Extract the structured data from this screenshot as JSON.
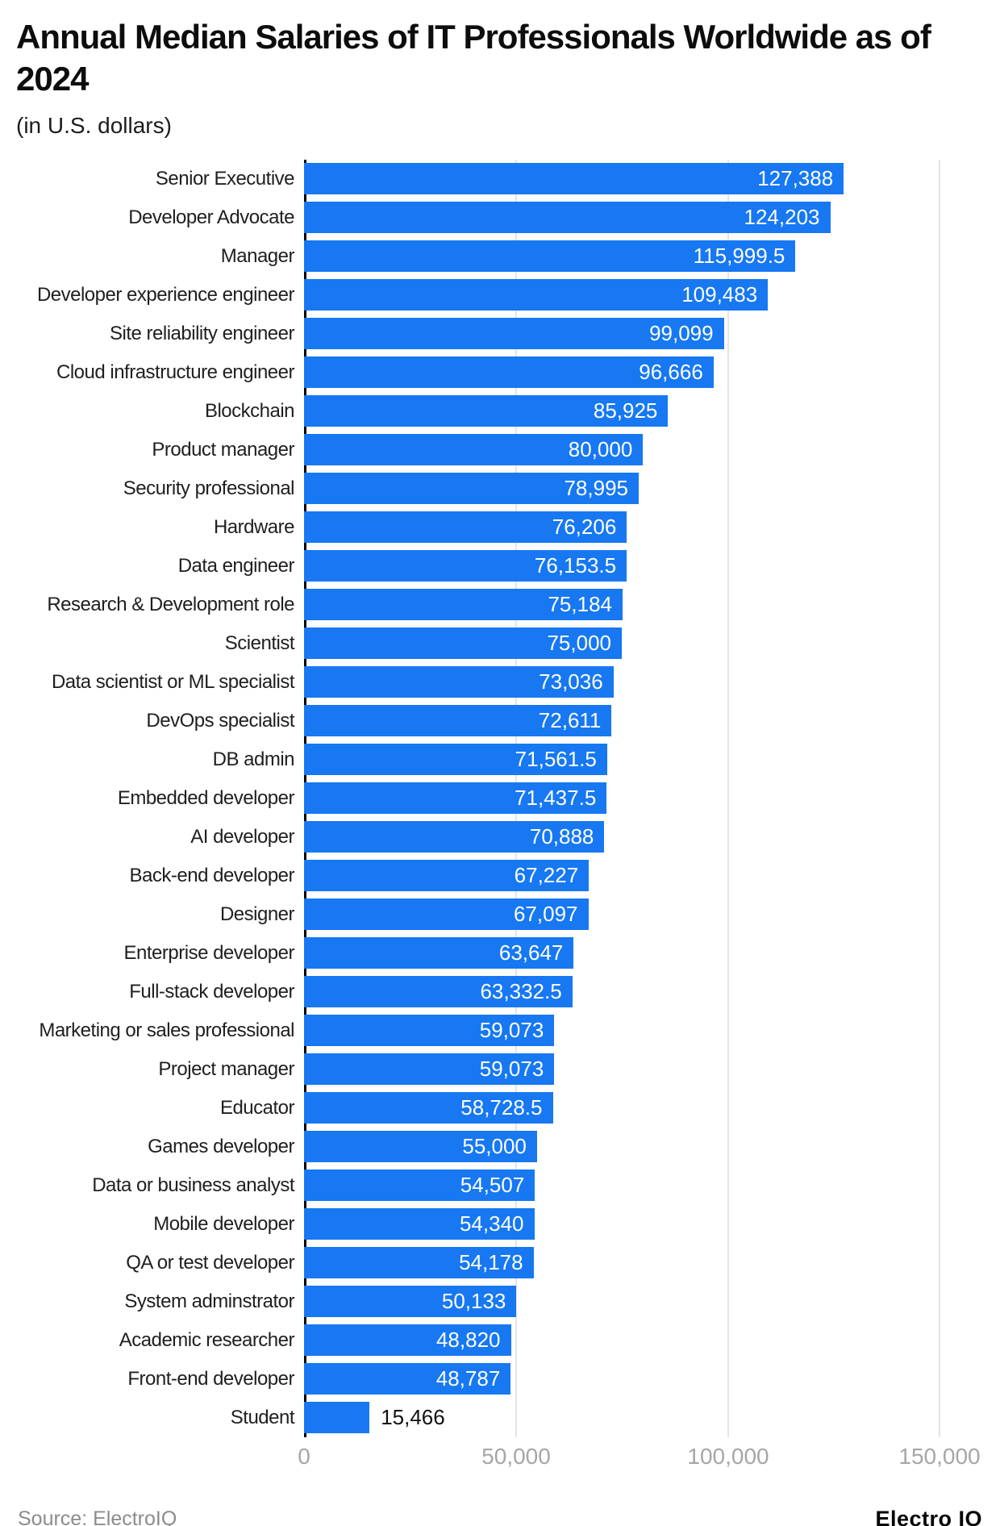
{
  "title": "Annual Median Salaries of IT Professionals Worldwide as of 2024",
  "subtitle": "(in U.S. dollars)",
  "source": "Source: ElectroIQ",
  "brand": "Electro IQ",
  "colors": {
    "bar": "#1778f2",
    "value_label_inside": "#ffffff",
    "value_label_outside": "#111111",
    "gridline": "#e4e4e4",
    "axis_line": "#000000",
    "tick_label": "#a6a6a6"
  },
  "chart_data": {
    "type": "bar",
    "orientation": "horizontal",
    "title": "Annual Median Salaries of IT Professionals Worldwide as of 2024",
    "subtitle": "(in U.S. dollars)",
    "xlabel": "",
    "ylabel": "",
    "xlim": [
      0,
      150000
    ],
    "x_ticks": [
      0,
      50000,
      100000,
      150000
    ],
    "x_tick_labels": [
      "0",
      "50,000",
      "100,000",
      "150,000"
    ],
    "grid": "vertical",
    "legend": "none",
    "categories": [
      "Senior Executive",
      "Developer Advocate",
      "Manager",
      "Developer experience engineer",
      "Site reliability engineer",
      "Cloud infrastructure engineer",
      "Blockchain",
      "Product manager",
      "Security professional",
      "Hardware",
      "Data engineer",
      "Research & Development role",
      "Scientist",
      "Data scientist or ML specialist",
      "DevOps specialist",
      "DB admin",
      "Embedded developer",
      "AI developer",
      "Back-end developer",
      "Designer",
      "Enterprise developer",
      "Full-stack developer",
      "Marketing or sales professional",
      "Project manager",
      "Educator",
      "Games developer",
      "Data or business analyst",
      "Mobile developer",
      "QA or test developer",
      "System adminstrator",
      "Academic researcher",
      "Front-end developer",
      "Student"
    ],
    "values": [
      127388,
      124203,
      115999.5,
      109483,
      99099,
      96666,
      85925,
      80000,
      78995,
      76206,
      76153.5,
      75184,
      75000,
      73036,
      72611,
      71561.5,
      71437.5,
      70888,
      67227,
      67097,
      63647,
      63332.5,
      59073,
      59073,
      58728.5,
      55000,
      54507,
      54340,
      54178,
      50133,
      48820,
      48787,
      15466
    ],
    "value_labels": [
      "127,388",
      "124,203",
      "115,999.5",
      "109,483",
      "99,099",
      "96,666",
      "85,925",
      "80,000",
      "78,995",
      "76,206",
      "76,153.5",
      "75,184",
      "75,000",
      "73,036",
      "72,611",
      "71,561.5",
      "71,437.5",
      "70,888",
      "67,227",
      "67,097",
      "63,647",
      "63,332.5",
      "59,073",
      "59,073",
      "58,728.5",
      "55,000",
      "54,507",
      "54,340",
      "54,178",
      "50,133",
      "48,820",
      "48,787",
      "15,466"
    ]
  }
}
